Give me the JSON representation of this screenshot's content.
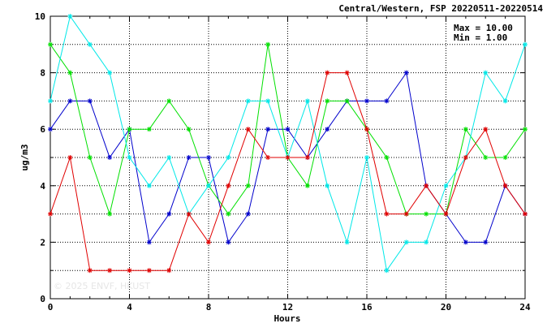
{
  "chart_data": {
    "type": "line",
    "title": "Central/Western, FSP 20220511-20220514",
    "xlabel": "Hours",
    "ylabel": "ug/m3",
    "xlim": [
      0,
      24
    ],
    "ylim": [
      0,
      10
    ],
    "xticks": [
      0,
      4,
      8,
      12,
      16,
      20,
      24
    ],
    "yticks": [
      0,
      2,
      4,
      6,
      8,
      10
    ],
    "grid": true,
    "stats": {
      "max": "Max = 10.00",
      "min": "Min =  1.00"
    },
    "watermark": "© 2025  ENVF, HKUST",
    "x": [
      0,
      1,
      2,
      3,
      4,
      5,
      6,
      7,
      8,
      9,
      10,
      11,
      12,
      13,
      14,
      15,
      16,
      17,
      18,
      19,
      20,
      21,
      22,
      23,
      24
    ],
    "series": [
      {
        "color": "#0000cc",
        "values": [
          6,
          7,
          7,
          5,
          6,
          2,
          3,
          5,
          5,
          2,
          3,
          6,
          6,
          5,
          6,
          7,
          7,
          7,
          8,
          4,
          3,
          2,
          2,
          4,
          3
        ]
      },
      {
        "color": "#00e000",
        "values": [
          9,
          8,
          5,
          3,
          6,
          6,
          7,
          6,
          4,
          3,
          4,
          9,
          5,
          4,
          7,
          7,
          6,
          5,
          3,
          3,
          3,
          6,
          5,
          5,
          6
        ]
      },
      {
        "color": "#00e8e8",
        "values": [
          7,
          10,
          9,
          8,
          5,
          4,
          5,
          3,
          4,
          5,
          7,
          7,
          5,
          7,
          4,
          2,
          5,
          1,
          2,
          2,
          4,
          5,
          8,
          7,
          9
        ]
      },
      {
        "color": "#e00000",
        "values": [
          3,
          5,
          1,
          1,
          1,
          1,
          1,
          3,
          2,
          4,
          6,
          5,
          5,
          5,
          8,
          8,
          6,
          3,
          3,
          4,
          3,
          5,
          6,
          4,
          3
        ]
      }
    ]
  }
}
